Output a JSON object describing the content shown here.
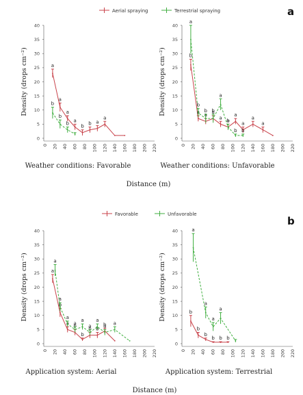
{
  "colors": {
    "red": "#c8424a",
    "green": "#3fae3f",
    "axis": "#555555"
  },
  "panels": [
    {
      "letter": "a",
      "legend": [
        "Aerial spraying",
        "Terrestrial spraying"
      ],
      "captions": [
        "Weather conditions: Favorable",
        "Weather conditions: Unfavorable"
      ],
      "xaxis_title": "Distance (m)"
    },
    {
      "letter": "b",
      "legend": [
        "Favorable",
        "Unfavorable"
      ],
      "captions": [
        "Application system: Aerial",
        "Application system: Terrestrial"
      ],
      "xaxis_title": "Distance (m)"
    }
  ],
  "chart_data": [
    {
      "type": "line",
      "title": "Weather conditions: Favorable",
      "xlabel": "Distance (m)",
      "ylabel": "Density (drops cm⁻²)",
      "xlim": [
        0,
        220
      ],
      "ylim": [
        0,
        40
      ],
      "xticks": [
        0,
        20,
        40,
        60,
        80,
        100,
        120,
        140,
        160,
        180,
        200,
        220
      ],
      "yticks": [
        0,
        5,
        10,
        15,
        20,
        25,
        30,
        35,
        40
      ],
      "series": [
        {
          "name": "Aerial spraying",
          "color": "red",
          "dashed": false,
          "x": [
            15,
            30,
            45,
            60,
            75,
            90,
            105,
            120,
            140,
            160
          ],
          "y": [
            23,
            11,
            7,
            4,
            2,
            3,
            3.5,
            5,
            1,
            1
          ],
          "err": [
            1.5,
            1.5,
            1,
            1,
            1,
            1,
            1,
            1,
            0,
            0
          ],
          "labels": [
            "a",
            "a",
            "a",
            "a",
            "b",
            "b",
            "a",
            "a",
            "",
            ""
          ]
        },
        {
          "name": "Terrestrial spraying",
          "color": "green",
          "dashed": true,
          "x": [
            15,
            30,
            45,
            60
          ],
          "y": [
            9,
            5,
            3,
            1.5
          ],
          "err": [
            2,
            1.5,
            1,
            0.5
          ],
          "labels": [
            "b",
            "b",
            "b",
            ""
          ]
        }
      ]
    },
    {
      "type": "line",
      "title": "Weather conditions: Unfavorable",
      "xlabel": "Distance (m)",
      "ylabel": "Density (drops cm⁻²)",
      "xlim": [
        0,
        220
      ],
      "ylim": [
        0,
        40
      ],
      "xticks": [
        0,
        20,
        40,
        60,
        80,
        100,
        120,
        140,
        160,
        180,
        200,
        220
      ],
      "yticks": [
        0,
        5,
        10,
        15,
        20,
        25,
        30,
        35,
        40
      ],
      "series": [
        {
          "name": "Aerial spraying",
          "color": "red",
          "dashed": false,
          "x": [
            15,
            30,
            45,
            60,
            75,
            90,
            105,
            120,
            140,
            160,
            180
          ],
          "y": [
            26,
            7,
            6,
            7,
            5,
            4,
            6,
            3,
            5,
            3,
            1
          ],
          "err": [
            2,
            1,
            1,
            1,
            1,
            1,
            1,
            1,
            1,
            1,
            0
          ],
          "labels": [
            "b",
            "a",
            "a",
            "a",
            "a",
            "a",
            "a",
            "a",
            "a",
            "a",
            ""
          ]
        },
        {
          "name": "Terrestrial spraying",
          "color": "green",
          "dashed": true,
          "x": [
            15,
            30,
            45,
            60,
            75,
            90,
            105,
            120
          ],
          "y": [
            35,
            9,
            7,
            7,
            12,
            4,
            1,
            1
          ],
          "err": [
            5,
            1.5,
            1.5,
            1.5,
            2,
            1,
            0.5,
            0.5
          ],
          "labels": [
            "a",
            "b",
            "b",
            "b",
            "a",
            "b",
            "b",
            "b"
          ]
        }
      ]
    },
    {
      "type": "line",
      "title": "Application system: Aerial",
      "xlabel": "Distance (m)",
      "ylabel": "Density (drops cm⁻²)",
      "xlim": [
        0,
        220
      ],
      "ylim": [
        0,
        40
      ],
      "xticks": [
        0,
        20,
        40,
        60,
        80,
        100,
        120,
        140,
        160,
        180,
        200,
        220
      ],
      "yticks": [
        0,
        5,
        10,
        15,
        20,
        25,
        30,
        35,
        40
      ],
      "series": [
        {
          "name": "Favorable",
          "color": "red",
          "dashed": false,
          "x": [
            15,
            30,
            45,
            60,
            75,
            90,
            105,
            120,
            140
          ],
          "y": [
            23,
            11,
            5,
            4,
            1.5,
            3,
            3,
            4.5,
            1
          ],
          "err": [
            1.5,
            1.5,
            1,
            1,
            0.5,
            1,
            1,
            1,
            0
          ],
          "labels": [
            "a",
            "b",
            "a",
            "b",
            "b",
            "b",
            "b",
            "b",
            ""
          ]
        },
        {
          "name": "Unfavorable",
          "color": "green",
          "dashed": true,
          "x": [
            20,
            30,
            45,
            60,
            75,
            90,
            105,
            120,
            140,
            170
          ],
          "y": [
            26,
            13,
            7,
            5,
            6,
            4,
            6,
            4,
            5,
            1
          ],
          "err": [
            2,
            1.5,
            1,
            1,
            1,
            1,
            1,
            1,
            1,
            0
          ],
          "labels": [
            "a",
            "a",
            "a",
            "a",
            "a",
            "a",
            "a",
            "a",
            "a",
            ""
          ]
        }
      ]
    },
    {
      "type": "line",
      "title": "Application system: Terrestrial",
      "xlabel": "Distance (m)",
      "ylabel": "Density (drops cm⁻²)",
      "xlim": [
        0,
        220
      ],
      "ylim": [
        0,
        40
      ],
      "xticks": [
        0,
        20,
        40,
        60,
        80,
        100,
        120,
        140,
        160,
        180,
        200,
        220
      ],
      "yticks": [
        0,
        5,
        10,
        15,
        20,
        25,
        30,
        35,
        40
      ],
      "series": [
        {
          "name": "Favorable",
          "color": "red",
          "dashed": false,
          "x": [
            15,
            30,
            45,
            60,
            75,
            90
          ],
          "y": [
            8,
            3,
            1.5,
            0.5,
            0.5,
            0.5
          ],
          "err": [
            2,
            1,
            0.5,
            0.2,
            0.2,
            0.2
          ],
          "labels": [
            "b",
            "b",
            "b",
            "b",
            "b",
            "b"
          ]
        },
        {
          "name": "Unfavorable",
          "color": "green",
          "dashed": true,
          "x": [
            20,
            45,
            60,
            75,
            105
          ],
          "y": [
            34,
            11,
            6,
            9,
            1
          ],
          "err": [
            5,
            2,
            1.5,
            2,
            0.5
          ],
          "labels": [
            "a",
            "a",
            "a",
            "a",
            ""
          ]
        }
      ]
    }
  ]
}
